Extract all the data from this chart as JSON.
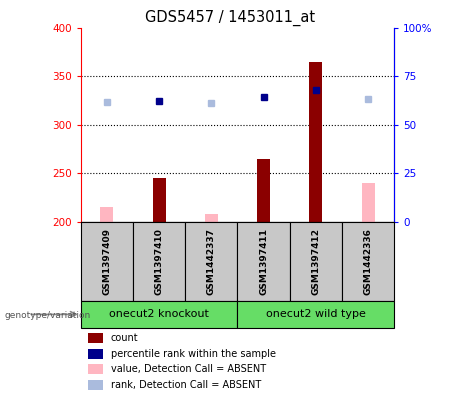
{
  "title": "GDS5457 / 1453011_at",
  "samples": [
    "GSM1397409",
    "GSM1397410",
    "GSM1442337",
    "GSM1397411",
    "GSM1397412",
    "GSM1442336"
  ],
  "bar_values": [
    null,
    245,
    null,
    265,
    365,
    null
  ],
  "absent_values": [
    215,
    null,
    208,
    null,
    null,
    240
  ],
  "absent_rank_values": [
    323,
    null,
    322,
    null,
    null,
    327
  ],
  "present_rank_values": [
    null,
    324,
    null,
    329,
    336,
    null
  ],
  "ylim_left": [
    200,
    400
  ],
  "ylim_right": [
    0,
    100
  ],
  "yticks_left": [
    200,
    250,
    300,
    350,
    400
  ],
  "yticks_right": [
    0,
    25,
    50,
    75,
    100
  ],
  "bar_color_present": "#8B0000",
  "bar_color_absent": "#FFB6C1",
  "rank_color_present": "#00008B",
  "rank_color_absent": "#AABBDD",
  "sample_bg_color": "#C8C8C8",
  "group_color": "#66DD66",
  "legend_items": [
    {
      "color": "#8B0000",
      "label": "count"
    },
    {
      "color": "#00008B",
      "label": "percentile rank within the sample"
    },
    {
      "color": "#FFB6C1",
      "label": "value, Detection Call = ABSENT"
    },
    {
      "color": "#AABBDD",
      "label": "rank, Detection Call = ABSENT"
    }
  ]
}
